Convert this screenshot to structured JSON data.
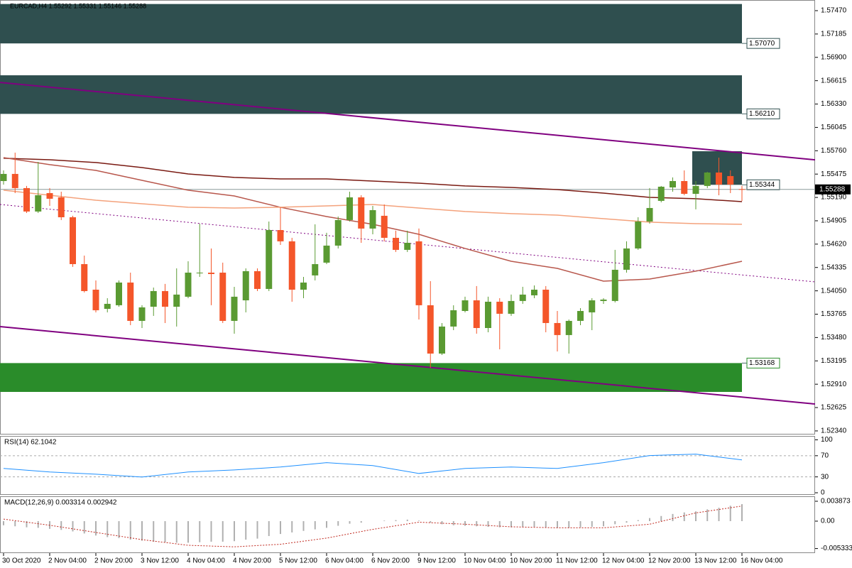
{
  "header": "EURCAD,H4  1.55292 1.55331 1.55146 1.55288",
  "chart_data": [
    {
      "type": "candlestick",
      "categories": [
        "30 Oct 2020",
        null,
        null,
        null,
        "2 Nov 04:00",
        null,
        null,
        null,
        "2 Nov 20:00",
        null,
        null,
        null,
        "3 Nov 12:00",
        null,
        null,
        null,
        "4 Nov 04:00",
        null,
        null,
        null,
        "4 Nov 20:00",
        null,
        null,
        null,
        "5 Nov 12:00",
        null,
        null,
        null,
        "6 Nov 04:00",
        null,
        null,
        null,
        "6 Nov 20:00",
        null,
        null,
        null,
        "9 Nov 12:00",
        null,
        null,
        null,
        "10 Nov 04:00",
        null,
        null,
        null,
        "10 Nov 20:00",
        null,
        null,
        null,
        "11 Nov 12:00",
        null,
        null,
        null,
        "12 Nov 04:00",
        null,
        null,
        null,
        "12 Nov 20:00",
        null,
        null,
        null,
        "13 Nov 12:00",
        null,
        null,
        null,
        "16 Nov 04:00"
      ],
      "open": [
        1.5539,
        1.55477,
        1.55304,
        1.55018,
        1.55243,
        1.55191,
        1.54948,
        1.54376,
        1.54064,
        1.5383,
        1.53874,
        1.54151,
        1.53683,
        1.53856,
        1.54047,
        1.53856,
        1.53978,
        1.54264,
        1.54272,
        1.54272,
        1.53683,
        1.53934,
        1.5429,
        1.54073,
        1.54792,
        1.54654,
        1.54064,
        1.54238,
        1.54394,
        1.54602,
        1.54914,
        1.55191,
        1.5481,
        1.54966,
        1.54697,
        1.5455,
        1.54654,
        1.53874,
        1.53284,
        1.53614,
        1.53804,
        1.53934,
        1.53596,
        1.53917,
        1.5377,
        1.53926,
        1.53995,
        1.54064,
        1.53657,
        1.5351,
        1.53683,
        1.53787,
        1.53926,
        1.53926,
        1.54307,
        1.54567,
        1.54896,
        1.55148,
        1.55312,
        1.5539,
        1.55234,
        1.5533,
        1.55494,
        1.55451,
        1.55292
      ],
      "high": [
        1.5552,
        1.55737,
        1.5533,
        1.55624,
        1.55304,
        1.5526,
        1.54966,
        1.5448,
        1.54177,
        1.5396,
        1.54177,
        1.54272,
        1.53874,
        1.5409,
        1.54134,
        1.54324,
        1.54411,
        1.5487,
        1.54567,
        1.54394,
        1.54099,
        1.54324,
        1.54324,
        1.54896,
        1.5507,
        1.54697,
        1.5422,
        1.54862,
        1.54758,
        1.54957,
        1.5526,
        1.55217,
        1.55087,
        1.55104,
        1.54784,
        1.54784,
        1.5481,
        1.54168,
        1.53657,
        1.53874,
        1.53978,
        1.54108,
        1.53978,
        1.5396,
        1.54004,
        1.54099,
        1.54116,
        1.54108,
        1.53804,
        1.537,
        1.53839,
        1.5396,
        1.5396,
        1.5455,
        1.54654,
        1.54948,
        1.55304,
        1.5533,
        1.55434,
        1.5552,
        1.5539,
        1.55503,
        1.55676,
        1.5552,
        1.55331
      ],
      "low": [
        1.55347,
        1.55243,
        1.55,
        1.55,
        1.55087,
        1.54914,
        1.54342,
        1.5403,
        1.53787,
        1.53787,
        1.53856,
        1.53631,
        1.53596,
        1.53744,
        1.53657,
        1.53614,
        1.5396,
        1.5422,
        1.53874,
        1.53657,
        1.53527,
        1.53787,
        1.54047,
        1.54047,
        1.5461,
        1.53917,
        1.5396,
        1.54177,
        1.54376,
        1.54567,
        1.54896,
        1.54636,
        1.5474,
        1.54654,
        1.54524,
        1.54524,
        1.537,
        1.53111,
        1.53267,
        1.5357,
        1.53787,
        1.53527,
        1.53544,
        1.53336,
        1.53744,
        1.53891,
        1.5396,
        1.53544,
        1.5331,
        1.53284,
        1.53631,
        1.5357,
        1.53891,
        1.53908,
        1.54272,
        1.5455,
        1.5487,
        1.5513,
        1.5526,
        1.55217,
        1.55044,
        1.55304,
        1.55217,
        1.55243,
        1.55146
      ],
      "close": [
        1.55477,
        1.55304,
        1.55018,
        1.55217,
        1.55174,
        1.54948,
        1.54376,
        1.54047,
        1.53813,
        1.53891,
        1.54151,
        1.53683,
        1.53848,
        1.54047,
        1.53856,
        1.54004,
        1.54272,
        1.54272,
        1.54255,
        1.53683,
        1.53978,
        1.5429,
        1.54073,
        1.54792,
        1.54654,
        1.54064,
        1.54151,
        1.54376,
        1.54602,
        1.54914,
        1.55191,
        1.5481,
        1.55035,
        1.54697,
        1.5455,
        1.54636,
        1.53874,
        1.53284,
        1.53614,
        1.53813,
        1.53934,
        1.53596,
        1.53917,
        1.5377,
        1.53926,
        1.54004,
        1.54064,
        1.53657,
        1.5351,
        1.53683,
        1.53804,
        1.53934,
        1.53943,
        1.54307,
        1.54567,
        1.54896,
        1.55061,
        1.55321,
        1.5539,
        1.55234,
        1.5533,
        1.55494,
        1.55347,
        1.55347,
        1.55288
      ],
      "up_color": "#5a9a32",
      "down_color": "#f4562a",
      "ylim": [
        1.52296,
        1.576
      ],
      "yticks": [
        {
          "value": 1.5747,
          "label": "1.57470"
        },
        1.57185,
        {
          "value": 1.569,
          "label": "1.56900"
        },
        1.56615,
        {
          "value": 1.5633,
          "label": "1.56330"
        },
        1.56045,
        {
          "value": 1.5576,
          "label": "1.55760"
        },
        1.55475,
        {
          "value": 1.5519,
          "label": "1.55190"
        },
        1.54905,
        {
          "value": 1.5462,
          "label": "1.54620"
        },
        1.54335,
        {
          "value": 1.5405,
          "label": "1.54050"
        },
        1.53765,
        {
          "value": 1.5348,
          "label": "1.53480"
        },
        1.53195,
        {
          "value": 1.5291,
          "label": "1.52910"
        },
        1.52625,
        {
          "value": 1.5234,
          "label": "1.52340"
        }
      ],
      "zones": [
        {
          "from": 0,
          "to": 64,
          "edge": 1.57551,
          "level": {
            "value": 1.5707,
            "label": "1.57070"
          },
          "color": "#2f4f4f"
        },
        {
          "from": 0,
          "to": 64,
          "edge": 1.56681,
          "level": {
            "value": 1.5621,
            "label": "1.56210"
          },
          "color": "#2f4f4f"
        },
        {
          "from": 60,
          "to": 64,
          "edge": 1.55754,
          "level": 1.55344,
          "color": "#2f4f4f"
        },
        {
          "from": 0,
          "to": 64,
          "edge": 1.52816,
          "level": 1.53168,
          "color": "#2a8c2a"
        }
      ],
      "trendlines": [
        {
          "x": [
            0,
            64
          ],
          "values": [
            1.5659,
            1.55734
          ],
          "color": "#800080",
          "dashed": false
        },
        {
          "x": [
            0,
            64
          ],
          "values": [
            1.53609,
            1.52753
          ],
          "color": "#800080",
          "dashed": false
        },
        {
          "x": [
            0,
            64
          ],
          "values": [
            1.551,
            1.54244
          ],
          "color": "#800080",
          "dashed": true
        }
      ],
      "series": [
        {
          "color": "#7a1a12",
          "x": [
            0,
            4,
            8,
            12,
            16,
            20,
            24,
            28,
            32,
            36,
            40,
            44,
            48,
            52,
            56,
            60,
            64
          ],
          "values": [
            1.55668,
            1.5565,
            1.55616,
            1.55555,
            1.55477,
            1.55434,
            1.55416,
            1.55416,
            1.5539,
            1.55364,
            1.5533,
            1.55312,
            1.55286,
            1.55243,
            1.55191,
            1.55174,
            1.55139
          ]
        },
        {
          "color": "#b8574c",
          "x": [
            0,
            4,
            8,
            12,
            16,
            20,
            24,
            28,
            32,
            36,
            40,
            44,
            48,
            52,
            56,
            60,
            64
          ],
          "values": [
            1.55676,
            1.5559,
            1.5552,
            1.55399,
            1.55278,
            1.55208,
            1.5507,
            1.54957,
            1.54862,
            1.5474,
            1.54567,
            1.54411,
            1.54324,
            1.54168,
            1.54194,
            1.5429,
            1.54411
          ]
        },
        {
          "color": "#f4a27c",
          "x": [
            0,
            4,
            8,
            12,
            16,
            20,
            24,
            28,
            32,
            36,
            40,
            44,
            48,
            52,
            56,
            60,
            64
          ],
          "values": [
            1.55278,
            1.55217,
            1.55156,
            1.55113,
            1.5507,
            1.55061,
            1.5507,
            1.55087,
            1.55104,
            1.55061,
            1.55018,
            1.54992,
            1.54974,
            1.54931,
            1.54888,
            1.5487,
            1.54862
          ]
        }
      ],
      "current_price": {
        "value": 1.55288,
        "label": "1.55288"
      }
    },
    {
      "type": "line",
      "title": "RSI(14) 62.1042",
      "color": "#1e90ff",
      "x": [
        0,
        4,
        8,
        12,
        16,
        20,
        24,
        28,
        32,
        36,
        40,
        44,
        48,
        52,
        56,
        60,
        64
      ],
      "values": [
        45.9,
        39.2,
        35.1,
        29.7,
        39.2,
        43.2,
        48.6,
        56.8,
        51.4,
        36.5,
        45.9,
        48.6,
        45.9,
        56.8,
        70.3,
        73.0,
        62.1
      ],
      "ylim": [
        -4,
        106
      ],
      "yticks": [
        0,
        30,
        70,
        100
      ]
    },
    {
      "type": "macd",
      "title": "MACD(12,26,9) 0.003314 0.002942",
      "color": "#b0b0b0",
      "signal_color": "#c0281e",
      "values": [
        -0.0008,
        -0.001,
        -0.0012,
        -0.0013,
        -0.0015,
        -0.0017,
        -0.002,
        -0.0024,
        -0.0028,
        -0.0031,
        -0.0033,
        -0.0036,
        -0.0038,
        -0.004,
        -0.0041,
        -0.0042,
        -0.0042,
        -0.0041,
        -0.004,
        -0.004,
        -0.0039,
        -0.0036,
        -0.0034,
        -0.0029,
        -0.0025,
        -0.0022,
        -0.0019,
        -0.0016,
        -0.0013,
        -0.0009,
        -0.0005,
        -0.0003,
        0,
        0.0001,
        0.0002,
        0.0003,
        0.0001,
        -0.0003,
        -0.0006,
        -0.0008,
        -0.0009,
        -0.001,
        -0.0011,
        -0.0012,
        -0.0012,
        -0.0011,
        -0.0011,
        -0.0012,
        -0.0013,
        -0.0013,
        -0.0012,
        -0.0011,
        -0.001,
        -0.0006,
        -0.0003,
        0.0002,
        0.0006,
        0.001,
        0.0014,
        0.0017,
        0.0019,
        0.0023,
        0.0026,
        0.003,
        0.003314
      ],
      "signal_x": [
        0,
        4,
        8,
        12,
        16,
        20,
        24,
        28,
        32,
        36,
        40,
        44,
        48,
        52,
        56,
        60,
        64
      ],
      "signal": [
        0.0004,
        -0.0008,
        -0.0022,
        -0.0036,
        -0.0047,
        -0.005,
        -0.0045,
        -0.0033,
        -0.0016,
        -0.0002,
        -0.0006,
        -0.0011,
        -0.0013,
        -0.0013,
        -0.0006,
        0.0016,
        0.002942
      ],
      "ylim": [
        -0.00608,
        0.0047
      ],
      "yticks": [
        0.003873,
        {
          "value": 0,
          "label": "0.00"
        },
        -0.005333
      ]
    }
  ]
}
